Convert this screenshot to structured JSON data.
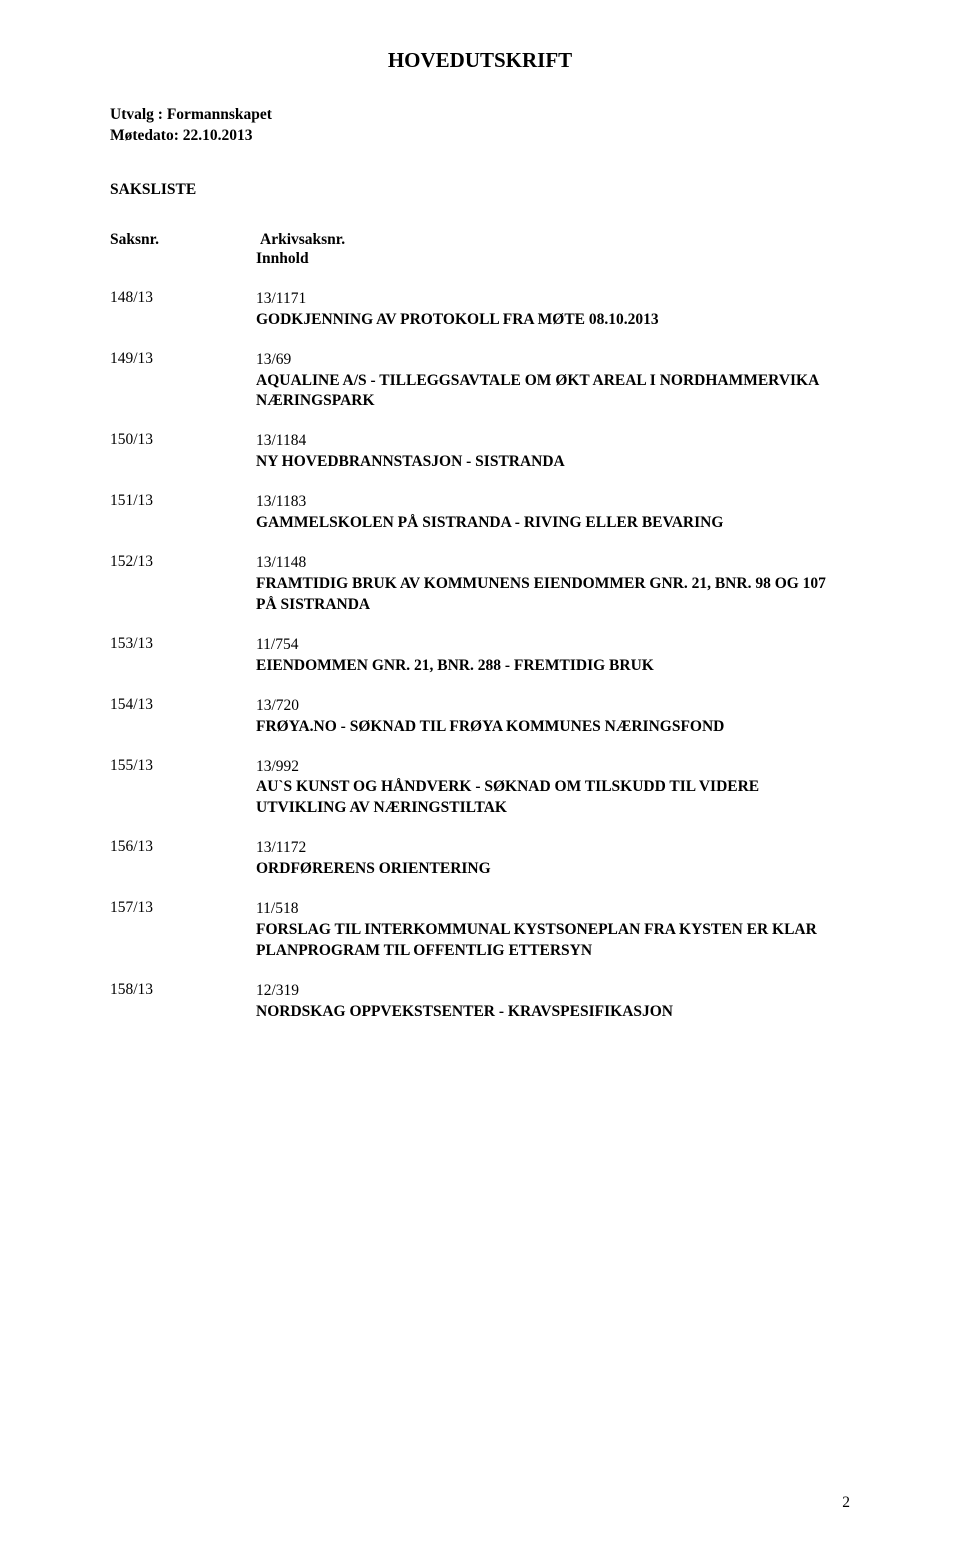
{
  "title": "HOVEDUTSKRIFT",
  "meta": {
    "utvalg_label": "Utvalg",
    "utvalg_value": "Formannskapet",
    "motedato_label": "Møtedato:",
    "motedato_value": "22.10.2013"
  },
  "saksliste_label": "SAKSLISTE",
  "headers": {
    "saksnr": "Saksnr.",
    "arkiv": "Arkivsaksnr.",
    "innhold": "Innhold"
  },
  "items": [
    {
      "saksnr": "148/13",
      "arkiv": "13/1171",
      "desc": "GODKJENNING AV PROTOKOLL FRA MØTE 08.10.2013"
    },
    {
      "saksnr": "149/13",
      "arkiv": "13/69",
      "desc": "AQUALINE A/S - TILLEGGSAVTALE OM ØKT AREAL I NORDHAMMERVIKA NÆRINGSPARK"
    },
    {
      "saksnr": "150/13",
      "arkiv": "13/1184",
      "desc": "NY HOVEDBRANNSTASJON - SISTRANDA"
    },
    {
      "saksnr": "151/13",
      "arkiv": "13/1183",
      "desc": "GAMMELSKOLEN PÅ SISTRANDA - RIVING ELLER BEVARING"
    },
    {
      "saksnr": "152/13",
      "arkiv": "13/1148",
      "desc": "FRAMTIDIG BRUK AV KOMMUNENS EIENDOMMER GNR. 21, BNR. 98 OG 107 PÅ SISTRANDA"
    },
    {
      "saksnr": "153/13",
      "arkiv": "11/754",
      "desc": "EIENDOMMEN GNR. 21, BNR. 288 - FREMTIDIG BRUK"
    },
    {
      "saksnr": "154/13",
      "arkiv": "13/720",
      "desc": "FRØYA.NO - SØKNAD TIL FRØYA KOMMUNES NÆRINGSFOND"
    },
    {
      "saksnr": "155/13",
      "arkiv": "13/992",
      "desc": "AU`S KUNST OG HÅNDVERK - SØKNAD OM TILSKUDD TIL VIDERE UTVIKLING AV NÆRINGSTILTAK"
    },
    {
      "saksnr": "156/13",
      "arkiv": "13/1172",
      "desc": "ORDFØRERENS ORIENTERING"
    },
    {
      "saksnr": "157/13",
      "arkiv": "11/518",
      "desc": "FORSLAG TIL INTERKOMMUNAL KYSTSONEPLAN FRA KYSTEN ER KLAR PLANPROGRAM TIL OFFENTLIG ETTERSYN"
    },
    {
      "saksnr": "158/13",
      "arkiv": "12/319",
      "desc": "NORDSKAG OPPVEKSTSENTER - KRAVSPESIFIKASJON"
    }
  ],
  "page_number": "2"
}
